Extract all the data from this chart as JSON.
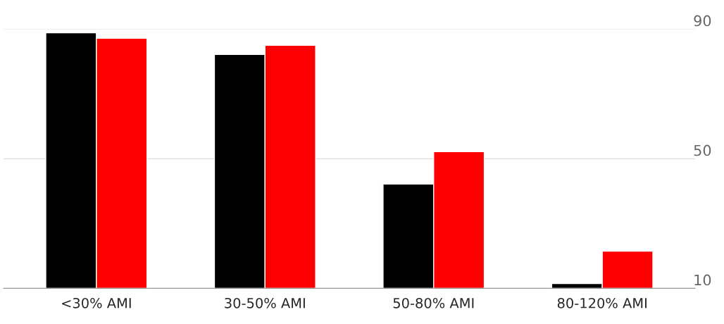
{
  "chart_data": {
    "type": "bar",
    "categories": [
      "<30% AMI",
      "30-50% AMI",
      "50-80% AMI",
      "80-120% AMI"
    ],
    "series": [
      {
        "color": "#000000",
        "values": [
          88.9,
          82.2,
          42.2,
          11.5
        ]
      },
      {
        "color": "#ff0000",
        "values": [
          87.2,
          85.0,
          52.2,
          21.5
        ]
      }
    ],
    "ylim": [
      10,
      90
    ],
    "yticks": [
      10,
      50,
      90
    ],
    "grid": "y",
    "legend": false
  }
}
